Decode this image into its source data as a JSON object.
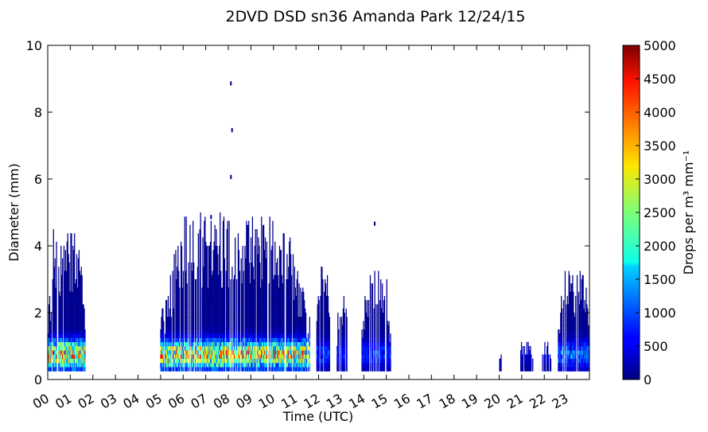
{
  "chart_data": {
    "type": "heatmap",
    "title": "2DVD DSD sn36 Amanda Park 12/24/15",
    "xlabel": "Time (UTC)",
    "ylabel": "Diameter (mm)",
    "colorbar_label": "Drops per m³ mm⁻¹",
    "x_tick_labels": [
      "00",
      "01",
      "02",
      "03",
      "04",
      "05",
      "06",
      "07",
      "08",
      "09",
      "10",
      "11",
      "12",
      "13",
      "14",
      "15",
      "16",
      "17",
      "18",
      "19",
      "20",
      "21",
      "22",
      "23"
    ],
    "x_tick_hours": [
      0,
      1,
      2,
      3,
      4,
      5,
      6,
      7,
      8,
      9,
      10,
      11,
      12,
      13,
      14,
      15,
      16,
      17,
      18,
      19,
      20,
      21,
      22,
      23
    ],
    "xlim_hours": [
      0,
      24
    ],
    "y_tick_labels": [
      "0",
      "2",
      "4",
      "6",
      "8",
      "10"
    ],
    "ylim": [
      0,
      10
    ],
    "colorbar_tick_labels": [
      "0",
      "500",
      "1000",
      "1500",
      "2000",
      "2500",
      "3000",
      "3500",
      "4000",
      "4500",
      "5000"
    ],
    "color_range": [
      0,
      5000
    ],
    "colormap": "jet",
    "rain_periods": [
      {
        "start_hour": 0.0,
        "end_hour": 1.65,
        "max_diameter": 4.5,
        "peak": 4800
      },
      {
        "start_hour": 4.95,
        "end_hour": 11.6,
        "max_diameter": 4.9,
        "peak": 4600,
        "outliers": [
          {
            "hour": 8.08,
            "diameter": 8.8
          },
          {
            "hour": 8.13,
            "diameter": 7.4
          },
          {
            "hour": 8.08,
            "diameter": 6.0
          },
          {
            "hour": 7.2,
            "diameter": 4.8
          }
        ]
      },
      {
        "start_hour": 11.9,
        "end_hour": 12.5,
        "max_diameter": 3.7,
        "peak": 1200
      },
      {
        "start_hour": 12.8,
        "end_hour": 13.3,
        "max_diameter": 2.5,
        "peak": 900
      },
      {
        "start_hour": 13.9,
        "end_hour": 15.2,
        "max_diameter": 3.2,
        "peak": 1100,
        "outliers": [
          {
            "hour": 14.45,
            "diameter": 4.6
          }
        ]
      },
      {
        "start_hour": 20.0,
        "end_hour": 20.1,
        "max_diameter": 0.7,
        "peak": 300
      },
      {
        "start_hour": 20.9,
        "end_hour": 21.5,
        "max_diameter": 1.1,
        "peak": 400
      },
      {
        "start_hour": 21.9,
        "end_hour": 22.3,
        "max_diameter": 1.1,
        "peak": 500
      },
      {
        "start_hour": 22.6,
        "end_hour": 24.0,
        "max_diameter": 3.3,
        "peak": 1700
      }
    ]
  }
}
